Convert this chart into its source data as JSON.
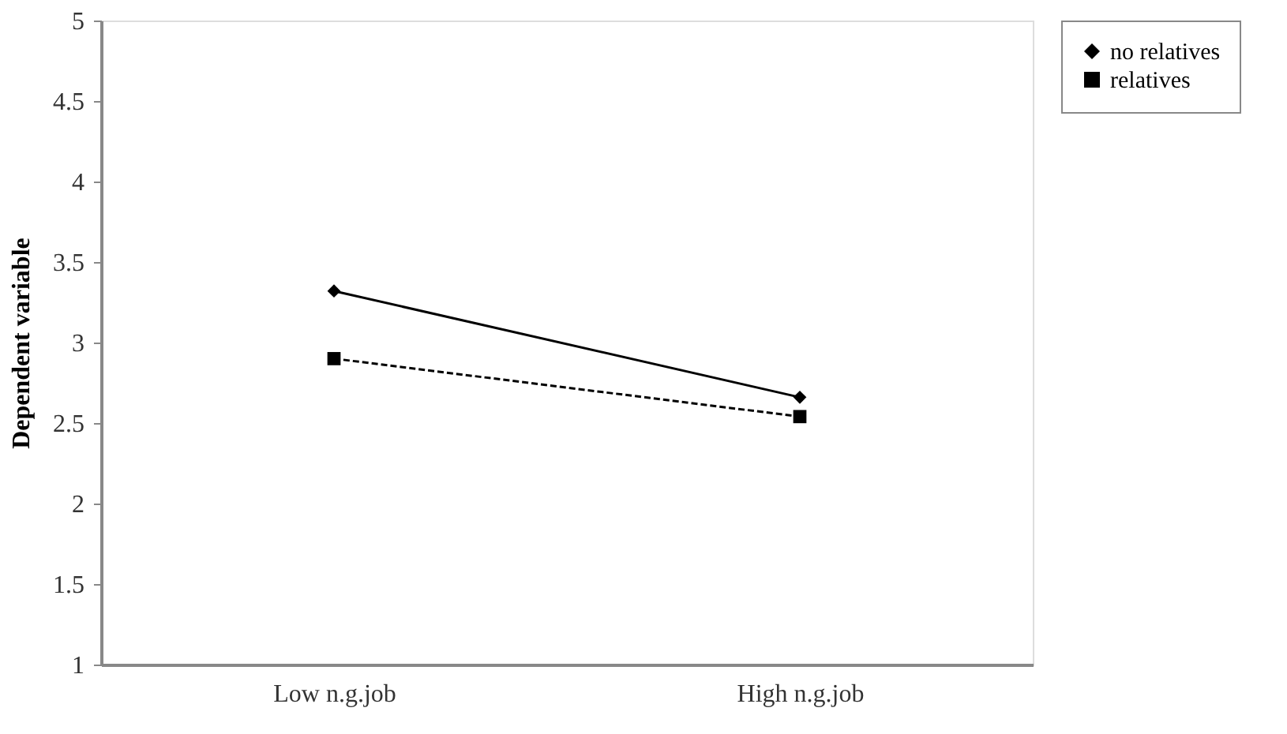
{
  "chart_data": {
    "type": "line",
    "ylabel": "Dependent variable",
    "categories": [
      "Low n.g.job",
      "High n.g.job"
    ],
    "series": [
      {
        "name": "no relatives",
        "color": "#000000",
        "values": [
          3.32,
          2.66
        ],
        "marker": "diamond",
        "line_style": "solid"
      },
      {
        "name": "relatives",
        "color": "#000000",
        "values": [
          2.9,
          2.54
        ],
        "marker": "square",
        "line_style": "dashed"
      }
    ],
    "ylim": [
      1,
      5
    ],
    "yticks": [
      1,
      1.5,
      2,
      2.5,
      3,
      3.5,
      4,
      4.5,
      5
    ],
    "grid": false,
    "legend": "right"
  }
}
